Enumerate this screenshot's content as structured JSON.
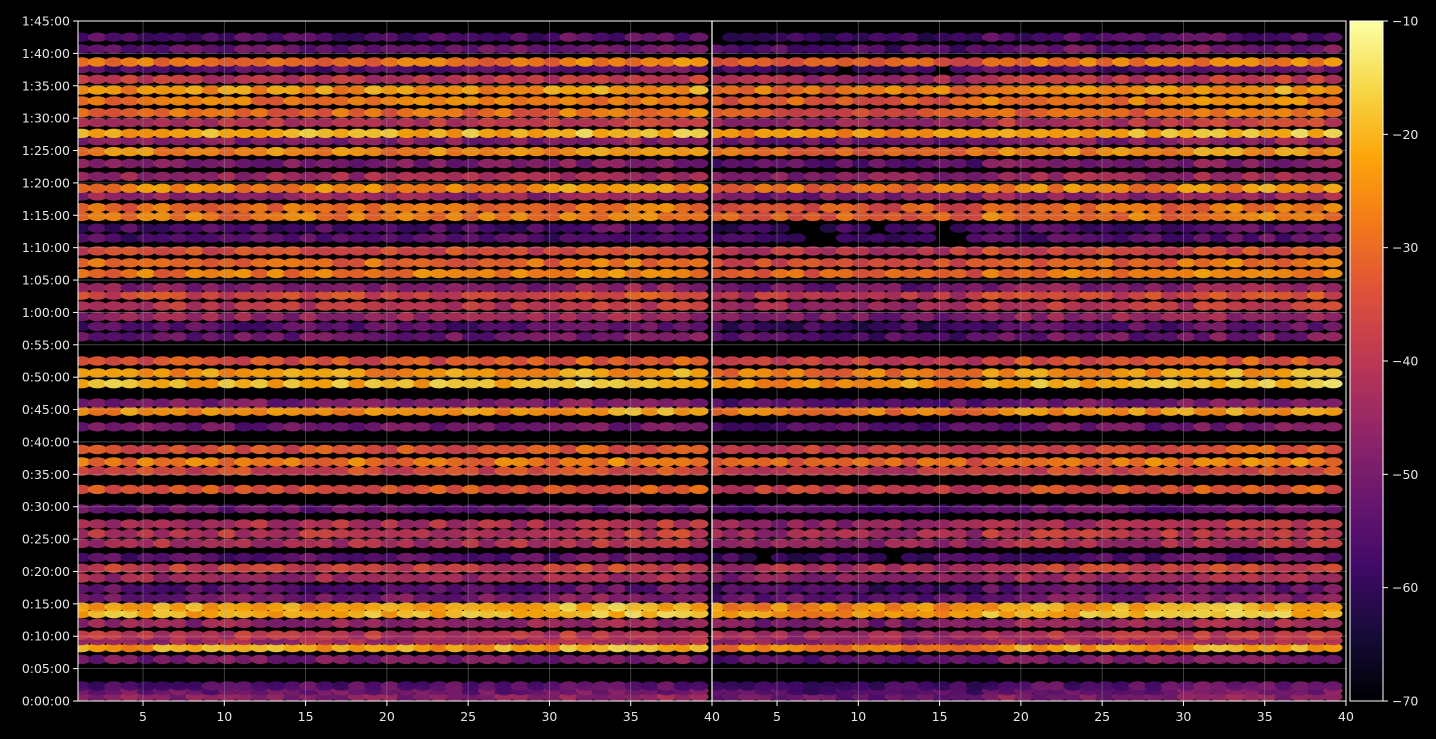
{
  "chart_data": {
    "type": "heatmap",
    "title": "",
    "xlabel": "",
    "ylabel": "",
    "x_axis": {
      "panels": 2,
      "xlim": [
        1,
        40
      ],
      "tick_values": [
        5,
        10,
        15,
        20,
        25,
        30,
        35,
        40
      ],
      "tick_labels": [
        "5",
        "10",
        "15",
        "20",
        "25",
        "30",
        "35",
        "40"
      ]
    },
    "y_axis": {
      "ylim_seconds": [
        0,
        6300
      ],
      "tick_values_seconds": [
        0,
        300,
        600,
        900,
        1200,
        1500,
        1800,
        2100,
        2400,
        2700,
        3000,
        3300,
        3600,
        3900,
        4200,
        4500,
        4800,
        5100,
        5400,
        5700,
        6000,
        6300
      ],
      "tick_labels": [
        "0:00:00",
        "0:05:00",
        "0:10:00",
        "0:15:00",
        "0:20:00",
        "0:25:00",
        "0:30:00",
        "0:35:00",
        "0:40:00",
        "0:45:00",
        "0:50:00",
        "0:55:00",
        "1:00:00",
        "1:05:00",
        "1:10:00",
        "1:15:00",
        "1:20:00",
        "1:25:00",
        "1:30:00",
        "1:35:00",
        "1:40:00",
        "1:45:00"
      ]
    },
    "grid": true,
    "colormap": "inferno",
    "colorbar": {
      "range": [
        -70,
        -10
      ],
      "tick_values": [
        -70,
        -60,
        -50,
        -40,
        -30,
        -20,
        -10
      ],
      "tick_labels": [
        "−70",
        "−60",
        "−50",
        "−40",
        "−30",
        "−20",
        "−10"
      ]
    },
    "bands": [
      {
        "t": 40,
        "v": -48
      },
      {
        "t": 95,
        "v": -52
      },
      {
        "t": 140,
        "v": -55
      },
      {
        "t": 385,
        "v": -50
      },
      {
        "t": 495,
        "v": -22
      },
      {
        "t": 560,
        "v": -44
      },
      {
        "t": 610,
        "v": -40
      },
      {
        "t": 720,
        "v": -46
      },
      {
        "t": 810,
        "v": -20
      },
      {
        "t": 870,
        "v": -21
      },
      {
        "t": 955,
        "v": -50
      },
      {
        "t": 1040,
        "v": -54
      },
      {
        "t": 1140,
        "v": -44
      },
      {
        "t": 1230,
        "v": -38
      },
      {
        "t": 1330,
        "v": -55
      },
      {
        "t": 1460,
        "v": -42
      },
      {
        "t": 1550,
        "v": -40
      },
      {
        "t": 1640,
        "v": -42
      },
      {
        "t": 1780,
        "v": -52
      },
      {
        "t": 1960,
        "v": -34
      },
      {
        "t": 2130,
        "v": -36
      },
      {
        "t": 2215,
        "v": -28
      },
      {
        "t": 2330,
        "v": -34
      },
      {
        "t": 2540,
        "v": -52
      },
      {
        "t": 2685,
        "v": -24
      },
      {
        "t": 2760,
        "v": -50
      },
      {
        "t": 2940,
        "v": -20
      },
      {
        "t": 3040,
        "v": -24
      },
      {
        "t": 3150,
        "v": -34
      },
      {
        "t": 3375,
        "v": -52
      },
      {
        "t": 3470,
        "v": -55
      },
      {
        "t": 3560,
        "v": -46
      },
      {
        "t": 3660,
        "v": -40
      },
      {
        "t": 3760,
        "v": -36
      },
      {
        "t": 3830,
        "v": -48
      },
      {
        "t": 3960,
        "v": -28
      },
      {
        "t": 4060,
        "v": -30
      },
      {
        "t": 4170,
        "v": -36
      },
      {
        "t": 4290,
        "v": -56
      },
      {
        "t": 4380,
        "v": -56
      },
      {
        "t": 4490,
        "v": -28
      },
      {
        "t": 4570,
        "v": -30
      },
      {
        "t": 4680,
        "v": -46
      },
      {
        "t": 4750,
        "v": -26
      },
      {
        "t": 4860,
        "v": -44
      },
      {
        "t": 4980,
        "v": -50
      },
      {
        "t": 5090,
        "v": -26
      },
      {
        "t": 5190,
        "v": -48
      },
      {
        "t": 5260,
        "v": -20
      },
      {
        "t": 5360,
        "v": -40
      },
      {
        "t": 5450,
        "v": -30
      },
      {
        "t": 5560,
        "v": -28
      },
      {
        "t": 5660,
        "v": -24
      },
      {
        "t": 5760,
        "v": -40
      },
      {
        "t": 5860,
        "v": -55
      },
      {
        "t": 5920,
        "v": -28
      },
      {
        "t": 6040,
        "v": -52
      },
      {
        "t": 6150,
        "v": -56
      }
    ]
  }
}
